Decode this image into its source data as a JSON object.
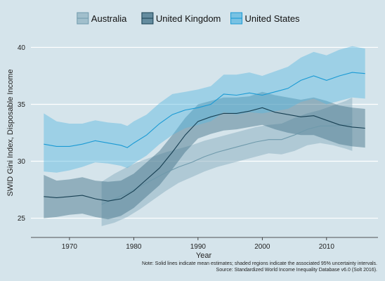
{
  "chart_data": {
    "type": "line",
    "title": "",
    "xlabel": "Year",
    "ylabel": "SWID Gini Index, Disposable Income",
    "xlim": [
      1964,
      2018
    ],
    "ylim": [
      23.8,
      41.2
    ],
    "x_ticks": [
      1970,
      1980,
      1990,
      2000,
      2010
    ],
    "x_tick_labels": [
      "1970",
      "1980",
      "1990",
      "2000",
      "2010"
    ],
    "y_ticks": [
      25,
      30,
      35,
      40
    ],
    "y_tick_labels": [
      "25",
      "30",
      "35",
      "40"
    ],
    "grid": "horizontal",
    "legend": {
      "position": "top",
      "entries": [
        "Australia",
        "United Kingdom",
        "United States"
      ]
    },
    "notes": [
      "Note: Solid lines indicate mean estimates; shaded regions indicate the associated 95% uncertainty intervals.",
      "Source: Standardized World Income Inequality Database v6.0 (Solt 2016)."
    ],
    "series": [
      {
        "name": "Australia",
        "color": "#8fb3c2",
        "line_color": "#6f9aac",
        "fill_opacity": 0.55,
        "x": [
          1975,
          1977,
          1979,
          1981,
          1983,
          1985,
          1987,
          1989,
          1991,
          1993,
          1995,
          1997,
          1999,
          2001,
          2003,
          2005,
          2007,
          2009,
          2011,
          2013,
          2014
        ],
        "mean": [
          26.2,
          26.7,
          27.2,
          27.8,
          28.4,
          29.0,
          29.5,
          29.9,
          30.4,
          30.8,
          31.1,
          31.4,
          31.7,
          31.9,
          31.9,
          32.3,
          32.8,
          33.1,
          33.1,
          33.2,
          33.3
        ],
        "lower": [
          24.3,
          24.6,
          25.1,
          25.8,
          26.6,
          27.4,
          28.1,
          28.6,
          29.1,
          29.5,
          29.8,
          30.1,
          30.4,
          30.7,
          30.6,
          30.9,
          31.4,
          31.6,
          31.4,
          31.1,
          30.9
        ],
        "upper": [
          28.2,
          28.9,
          29.5,
          30.0,
          30.4,
          30.8,
          31.1,
          31.4,
          31.8,
          32.1,
          32.4,
          32.7,
          33.0,
          33.2,
          33.3,
          33.8,
          34.2,
          34.5,
          34.9,
          35.3,
          35.6
        ]
      },
      {
        "name": "United Kingdom",
        "color": "#3e6f85",
        "line_color": "#173f52",
        "fill_opacity": 0.45,
        "x": [
          1966,
          1968,
          1970,
          1972,
          1974,
          1976,
          1978,
          1980,
          1982,
          1984,
          1986,
          1988,
          1990,
          1992,
          1994,
          1996,
          1998,
          2000,
          2002,
          2004,
          2006,
          2008,
          2010,
          2012,
          2014,
          2016
        ],
        "mean": [
          26.9,
          26.8,
          26.9,
          27.0,
          26.7,
          26.5,
          26.7,
          27.4,
          28.4,
          29.4,
          30.8,
          32.3,
          33.5,
          33.9,
          34.2,
          34.2,
          34.4,
          34.7,
          34.3,
          34.1,
          33.9,
          34.0,
          33.6,
          33.2,
          33.0,
          32.9
        ],
        "lower": [
          25.0,
          25.1,
          25.3,
          25.4,
          25.1,
          24.9,
          25.2,
          25.9,
          26.9,
          27.9,
          29.3,
          30.8,
          32.0,
          32.4,
          32.7,
          32.8,
          33.0,
          33.2,
          32.8,
          32.5,
          32.3,
          32.3,
          31.9,
          31.5,
          31.3,
          31.2
        ],
        "upper": [
          28.8,
          28.3,
          28.4,
          28.6,
          28.3,
          28.2,
          28.3,
          28.9,
          29.9,
          30.9,
          32.3,
          33.8,
          35.0,
          35.3,
          35.6,
          35.6,
          35.7,
          36.1,
          35.8,
          35.6,
          35.4,
          35.6,
          35.3,
          34.9,
          34.7,
          34.6
        ]
      },
      {
        "name": "United States",
        "color": "#59b7e0",
        "line_color": "#1a9ad4",
        "fill_opacity": 0.45,
        "x": [
          1966,
          1968,
          1970,
          1972,
          1974,
          1976,
          1978,
          1979,
          1980,
          1982,
          1984,
          1986,
          1988,
          1990,
          1992,
          1994,
          1996,
          1998,
          2000,
          2002,
          2004,
          2006,
          2008,
          2010,
          2012,
          2014,
          2016
        ],
        "mean": [
          31.5,
          31.3,
          31.3,
          31.5,
          31.8,
          31.6,
          31.4,
          31.2,
          31.6,
          32.3,
          33.3,
          34.1,
          34.5,
          34.7,
          35.0,
          35.9,
          35.8,
          36.0,
          35.8,
          36.1,
          36.4,
          37.1,
          37.5,
          37.1,
          37.5,
          37.8,
          37.7
        ],
        "lower": [
          29.1,
          29.0,
          29.2,
          29.5,
          29.9,
          29.8,
          29.6,
          29.4,
          29.8,
          30.5,
          31.5,
          32.3,
          32.9,
          33.2,
          33.5,
          34.3,
          34.1,
          34.3,
          34.2,
          34.4,
          34.6,
          35.2,
          35.5,
          35.0,
          35.3,
          35.6,
          35.5
        ],
        "upper": [
          34.2,
          33.5,
          33.3,
          33.3,
          33.6,
          33.4,
          33.3,
          33.1,
          33.5,
          34.1,
          35.1,
          35.9,
          36.1,
          36.3,
          36.6,
          37.6,
          37.6,
          37.8,
          37.5,
          37.9,
          38.3,
          39.1,
          39.6,
          39.3,
          39.8,
          40.1,
          39.9
        ]
      }
    ]
  }
}
